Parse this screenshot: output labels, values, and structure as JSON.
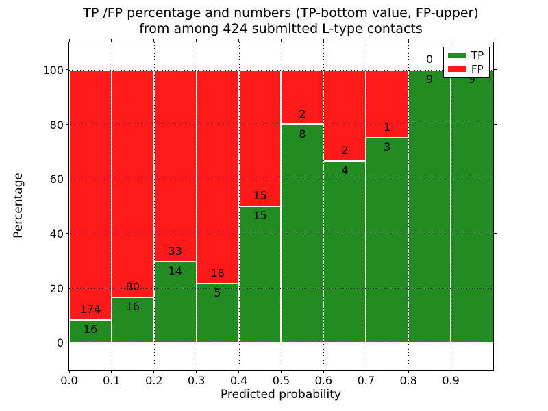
{
  "title": {
    "line1": "TP /FP percentage and numbers (TP-bottom value, FP-upper)",
    "line2": "from among 424 submitted L-type contacts"
  },
  "x_axis": {
    "label": "Predicted probability",
    "ticks": [
      "0.0",
      "0.1",
      "0.2",
      "0.3",
      "0.4",
      "0.5",
      "0.6",
      "0.7",
      "0.8",
      "0.9"
    ]
  },
  "y_axis": {
    "label": "Percentage",
    "ticks": [
      "0",
      "20",
      "40",
      "60",
      "80",
      "100"
    ]
  },
  "legend": {
    "items": [
      {
        "label": "TP",
        "color": "#228b22"
      },
      {
        "label": "FP",
        "color": "#ff1a1a"
      }
    ]
  },
  "chart_data": {
    "type": "bar",
    "stacked": true,
    "normalized": "each bin scaled to 100%; labels show raw counts (TP bottom, FP upper)",
    "title": "TP /FP percentage and numbers (TP-bottom value, FP-upper) from among 424 submitted L-type contacts",
    "xlabel": "Predicted probability",
    "ylabel": "Percentage",
    "xlim": [
      0.0,
      1.0
    ],
    "ylim": [
      -10,
      110
    ],
    "grid": true,
    "legend_position": "upper right",
    "total_contacts": 424,
    "bin_edges": [
      0.0,
      0.1,
      0.2,
      0.3,
      0.4,
      0.5,
      0.6,
      0.7,
      0.8,
      0.9,
      1.0
    ],
    "series": [
      {
        "name": "TP",
        "color": "#228b22",
        "counts": [
          16,
          16,
          14,
          5,
          15,
          8,
          4,
          3,
          9,
          9
        ]
      },
      {
        "name": "FP",
        "color": "#ff1a1a",
        "counts": [
          174,
          80,
          33,
          18,
          15,
          2,
          2,
          1,
          0,
          0
        ]
      }
    ],
    "tp_percent": [
      8.42,
      16.67,
      29.79,
      21.74,
      50.0,
      80.0,
      66.67,
      75.0,
      100.0,
      100.0
    ],
    "fp_percent": [
      91.58,
      83.33,
      70.21,
      78.26,
      50.0,
      20.0,
      33.33,
      25.0,
      0.0,
      0.0
    ]
  }
}
